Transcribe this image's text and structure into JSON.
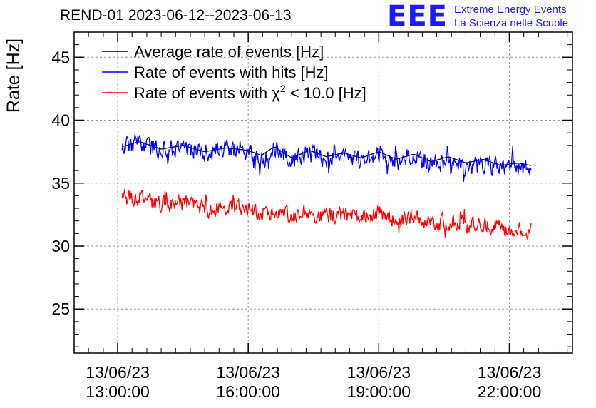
{
  "header": {
    "title": "REND-01 2023-06-12--2023-06-13",
    "logo_text": "EEE",
    "logo_line1": "Extreme Energy Events",
    "logo_line2": "La Scienza nelle Scuole",
    "logo_color": "#1a1aff"
  },
  "chart_data": {
    "type": "line",
    "title": "REND-01 2023-06-12--2023-06-13",
    "xlabel": "",
    "ylabel": "Rate [Hz]",
    "ylim": [
      21.5,
      47
    ],
    "xlim_hours": [
      12.0,
      23.45
    ],
    "grid": true,
    "legend_position": "top-left",
    "y_ticks": [
      25,
      30,
      35,
      40,
      45
    ],
    "x_ticks": [
      {
        "hour": 13,
        "date": "13/06/23",
        "time": "13:00:00"
      },
      {
        "hour": 16,
        "date": "13/06/23",
        "time": "16:00:00"
      },
      {
        "hour": 19,
        "date": "13/06/23",
        "time": "19:00:00"
      },
      {
        "hour": 22,
        "date": "13/06/23",
        "time": "22:00:00"
      }
    ],
    "x_minor_tick_hours": [
      12.33,
      12.67,
      13.33,
      13.67,
      14,
      14.33,
      14.67,
      15,
      15.33,
      15.67,
      16.33,
      16.67,
      17,
      17.33,
      17.67,
      18,
      18.33,
      18.67,
      19.33,
      19.67,
      20,
      20.33,
      20.67,
      21,
      21.33,
      21.67,
      22.33,
      22.67,
      23,
      23.33
    ],
    "series": [
      {
        "name": "Average rate of events [Hz]",
        "color": "#000000",
        "x": [
          13.1,
          13.5,
          14.0,
          14.5,
          15.0,
          15.5,
          16.0,
          16.3,
          16.6,
          17.0,
          17.4,
          17.8,
          18.2,
          18.6,
          19.0,
          19.4,
          19.8,
          20.2,
          20.6,
          21.0,
          21.4,
          21.8,
          22.2,
          22.5
        ],
        "y": [
          37.9,
          38.3,
          37.7,
          38.0,
          37.5,
          37.8,
          37.6,
          37.2,
          37.9,
          37.0,
          37.6,
          37.1,
          37.4,
          37.0,
          37.5,
          36.9,
          37.3,
          36.7,
          37.1,
          36.6,
          36.9,
          36.4,
          36.6,
          36.4
        ]
      },
      {
        "name": "Rate of events with hits [Hz]",
        "color": "#0000ff",
        "x": [
          13.1,
          13.5,
          14.0,
          14.5,
          15.0,
          15.5,
          16.0,
          16.3,
          16.6,
          17.0,
          17.4,
          17.8,
          18.2,
          18.6,
          19.0,
          19.4,
          19.8,
          20.2,
          20.6,
          21.0,
          21.4,
          21.8,
          22.2,
          22.5
        ],
        "y": [
          37.9,
          38.2,
          37.7,
          37.9,
          37.4,
          37.7,
          37.5,
          37.1,
          37.7,
          36.9,
          37.4,
          37.0,
          37.2,
          36.8,
          37.3,
          36.7,
          37.1,
          36.5,
          36.8,
          36.4,
          36.6,
          36.2,
          36.3,
          36.0
        ],
        "noise_amplitude": 1.0
      },
      {
        "name": "Rate of events with χ² < 10.0 [Hz]",
        "color": "#ff0000",
        "x": [
          13.1,
          13.5,
          14.0,
          14.5,
          15.0,
          15.5,
          16.0,
          16.3,
          16.6,
          17.0,
          17.4,
          17.8,
          18.2,
          18.6,
          19.0,
          19.4,
          19.8,
          20.2,
          20.6,
          21.0,
          21.4,
          21.8,
          22.2,
          22.5
        ],
        "y": [
          34.0,
          33.8,
          33.3,
          33.5,
          33.0,
          33.1,
          32.9,
          32.6,
          32.9,
          32.3,
          32.7,
          32.4,
          32.5,
          32.2,
          32.6,
          32.0,
          32.3,
          31.7,
          31.9,
          31.6,
          31.8,
          31.4,
          31.5,
          31.3
        ],
        "noise_amplitude": 0.9
      }
    ],
    "legend": [
      {
        "label": "Average rate of events [Hz]",
        "color": "#000000"
      },
      {
        "label": "Rate of events with hits [Hz]",
        "color": "#0000ff"
      },
      {
        "label_prefix": "Rate of events with ",
        "label_symbol": "χ",
        "label_sup": "2",
        "label_suffix": " < 10.0 [Hz]",
        "color": "#ff0000"
      }
    ]
  }
}
